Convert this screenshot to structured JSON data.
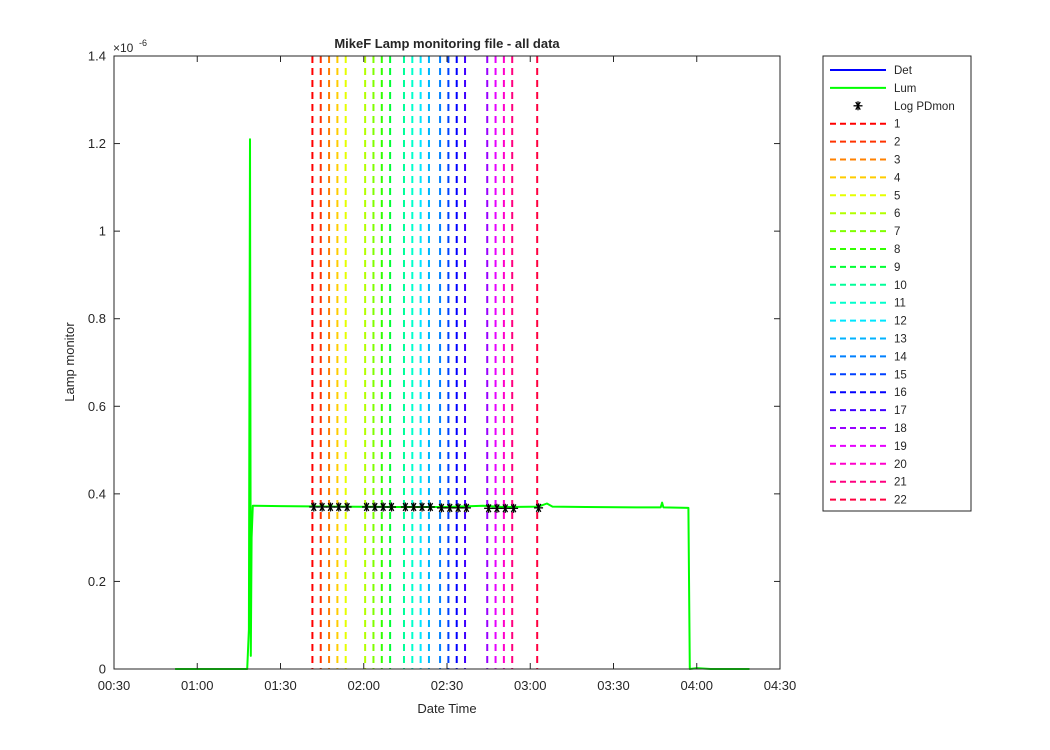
{
  "chart_data": {
    "type": "line",
    "title": "MikeF Lamp monitoring file - all data",
    "xlabel": "Date Time",
    "ylabel": "Lamp monitor",
    "y_exponent": "×10",
    "y_exponent_power": "-6",
    "xlim_minutes": [
      30,
      270
    ],
    "ylim": [
      0,
      1.4
    ],
    "x_ticks": [
      {
        "minute": 30,
        "label": "00:30"
      },
      {
        "minute": 60,
        "label": "01:00"
      },
      {
        "minute": 90,
        "label": "01:30"
      },
      {
        "minute": 120,
        "label": "02:00"
      },
      {
        "minute": 150,
        "label": "02:30"
      },
      {
        "minute": 180,
        "label": "03:00"
      },
      {
        "minute": 210,
        "label": "03:30"
      },
      {
        "minute": 240,
        "label": "04:00"
      },
      {
        "minute": 270,
        "label": "04:30"
      }
    ],
    "y_ticks": [
      {
        "value": 0,
        "label": "0"
      },
      {
        "value": 0.2,
        "label": "0.2"
      },
      {
        "value": 0.4,
        "label": "0.4"
      },
      {
        "value": 0.6,
        "label": "0.6"
      },
      {
        "value": 0.8,
        "label": "0.8"
      },
      {
        "value": 1.0,
        "label": "1"
      },
      {
        "value": 1.2,
        "label": "1.2"
      },
      {
        "value": 1.4,
        "label": "1.4"
      }
    ],
    "grid": false,
    "legend_position": "outside-right",
    "series": [
      {
        "name": "Det",
        "color": "#0000ff",
        "style": "solid",
        "points": []
      },
      {
        "name": "Lum",
        "color": "#00ff00",
        "style": "solid",
        "points": [
          [
            52,
            0
          ],
          [
            78,
            0
          ],
          [
            78.6,
            0.09
          ],
          [
            79,
            1.21
          ],
          [
            79.3,
            0.03
          ],
          [
            79.6,
            0.3
          ],
          [
            80,
            0.373
          ],
          [
            90,
            0.372
          ],
          [
            110,
            0.371
          ],
          [
            130,
            0.37
          ],
          [
            150,
            0.37
          ],
          [
            163,
            0.373
          ],
          [
            170,
            0.37
          ],
          [
            183,
            0.371
          ],
          [
            186,
            0.378
          ],
          [
            188,
            0.371
          ],
          [
            200,
            0.37
          ],
          [
            220,
            0.369
          ],
          [
            227,
            0.369
          ],
          [
            227.5,
            0.38
          ],
          [
            228,
            0.369
          ],
          [
            237,
            0.368
          ],
          [
            237.5,
            0
          ],
          [
            240,
            0.002
          ],
          [
            245,
            0
          ],
          [
            259,
            0
          ]
        ]
      },
      {
        "name": "Log PDmon",
        "color": "#000000",
        "style": "marker",
        "points": [
          [
            102,
            0.37
          ],
          [
            105,
            0.37
          ],
          [
            108,
            0.37
          ],
          [
            111,
            0.37
          ],
          [
            114,
            0.37
          ],
          [
            121,
            0.37
          ],
          [
            124,
            0.37
          ],
          [
            127,
            0.37
          ],
          [
            130,
            0.37
          ],
          [
            135,
            0.37
          ],
          [
            138,
            0.37
          ],
          [
            141,
            0.37
          ],
          [
            144,
            0.37
          ],
          [
            148,
            0.368
          ],
          [
            151,
            0.368
          ],
          [
            154,
            0.368
          ],
          [
            157,
            0.368
          ],
          [
            165,
            0.367
          ],
          [
            168,
            0.367
          ],
          [
            171,
            0.367
          ],
          [
            174,
            0.367
          ],
          [
            183,
            0.368
          ]
        ]
      }
    ],
    "vertical_lines": [
      {
        "name": "1",
        "minute": 101.5,
        "color": "#ff0000"
      },
      {
        "name": "2",
        "minute": 104.5,
        "color": "#ff3300"
      },
      {
        "name": "3",
        "minute": 107.5,
        "color": "#ff8000"
      },
      {
        "name": "4",
        "minute": 110.5,
        "color": "#ffcc00"
      },
      {
        "name": "5",
        "minute": 113.5,
        "color": "#e6ff00"
      },
      {
        "name": "6",
        "minute": 120.5,
        "color": "#b3ff00"
      },
      {
        "name": "7",
        "minute": 123.5,
        "color": "#80ff00"
      },
      {
        "name": "8",
        "minute": 126.5,
        "color": "#33ff00"
      },
      {
        "name": "9",
        "minute": 129.5,
        "color": "#00ff33"
      },
      {
        "name": "10",
        "minute": 134.5,
        "color": "#00ff99"
      },
      {
        "name": "11",
        "minute": 137.5,
        "color": "#00ffcc"
      },
      {
        "name": "12",
        "minute": 140.5,
        "color": "#00e6ff"
      },
      {
        "name": "13",
        "minute": 143.5,
        "color": "#00b3ff"
      },
      {
        "name": "14",
        "minute": 147.5,
        "color": "#0080ff"
      },
      {
        "name": "15",
        "minute": 150.5,
        "color": "#0040ff"
      },
      {
        "name": "16",
        "minute": 153.5,
        "color": "#0000ff"
      },
      {
        "name": "17",
        "minute": 156.5,
        "color": "#4000ff"
      },
      {
        "name": "18",
        "minute": 164.5,
        "color": "#9900ff"
      },
      {
        "name": "19",
        "minute": 167.5,
        "color": "#e600ff"
      },
      {
        "name": "20",
        "minute": 170.5,
        "color": "#ff00cc"
      },
      {
        "name": "21",
        "minute": 173.5,
        "color": "#ff0080"
      },
      {
        "name": "22",
        "minute": 182.5,
        "color": "#ff0040"
      }
    ]
  }
}
